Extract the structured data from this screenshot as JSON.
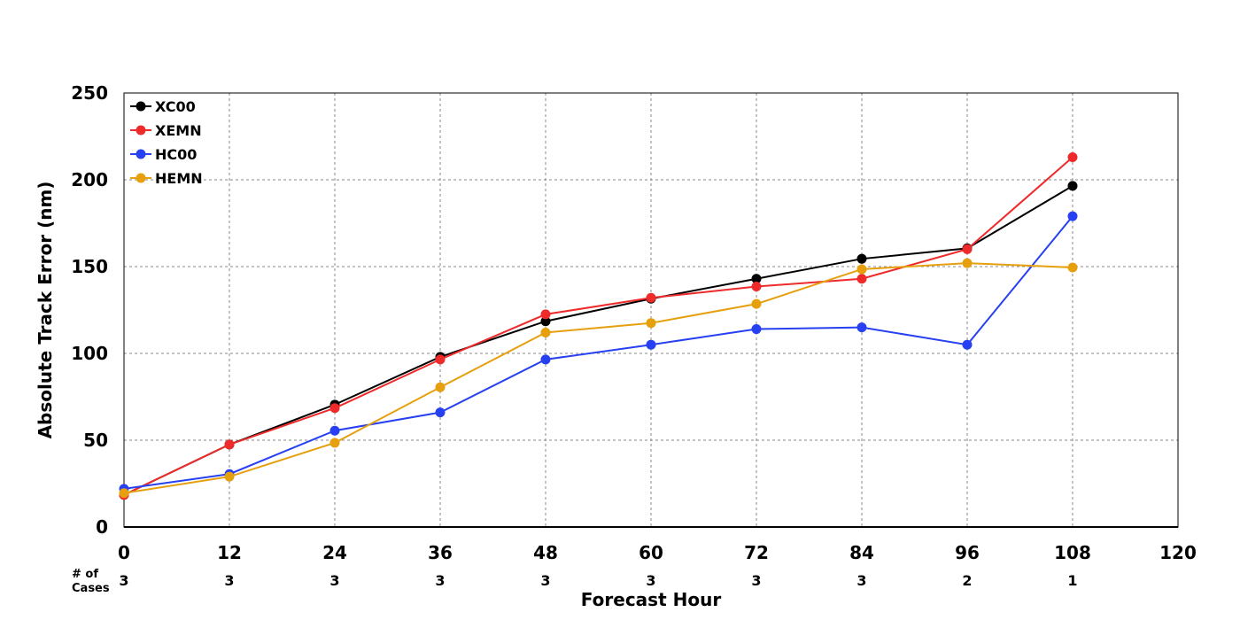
{
  "chart_data": {
    "type": "line",
    "title": "",
    "xlabel": "Forecast Hour",
    "ylabel": "Absolute Track Error (nm)",
    "xlim": [
      0,
      120
    ],
    "ylim": [
      0,
      250
    ],
    "xticks": [
      0,
      12,
      24,
      36,
      48,
      60,
      72,
      84,
      96,
      108,
      120
    ],
    "yticks": [
      0,
      50,
      100,
      150,
      200,
      250
    ],
    "grid": true,
    "legend_position": "top-left",
    "x": [
      0,
      12,
      24,
      36,
      48,
      60,
      72,
      84,
      96,
      108
    ],
    "series": [
      {
        "name": "XC00",
        "color": "#000000",
        "values": [
          18.5,
          47.5,
          70.5,
          98,
          118.5,
          131.5,
          143,
          154.5,
          160.5,
          196.5
        ]
      },
      {
        "name": "XEMN",
        "color": "#ee2a2a",
        "values": [
          18.5,
          47.5,
          68.5,
          96.5,
          122.5,
          132,
          138.5,
          143,
          160,
          213
        ]
      },
      {
        "name": "HC00",
        "color": "#2640f2",
        "values": [
          22,
          30.5,
          55.5,
          66,
          96.5,
          105,
          114,
          115,
          105,
          179
        ]
      },
      {
        "name": "HEMN",
        "color": "#e6a00e",
        "values": [
          19.5,
          29,
          48.5,
          80.5,
          112,
          117.5,
          128.5,
          148.5,
          152,
          149.5
        ]
      }
    ],
    "cases_label": "# of Cases",
    "cases_label_lines": [
      "# of",
      "Cases"
    ],
    "cases": [
      3,
      3,
      3,
      3,
      3,
      3,
      3,
      3,
      2,
      1
    ]
  }
}
